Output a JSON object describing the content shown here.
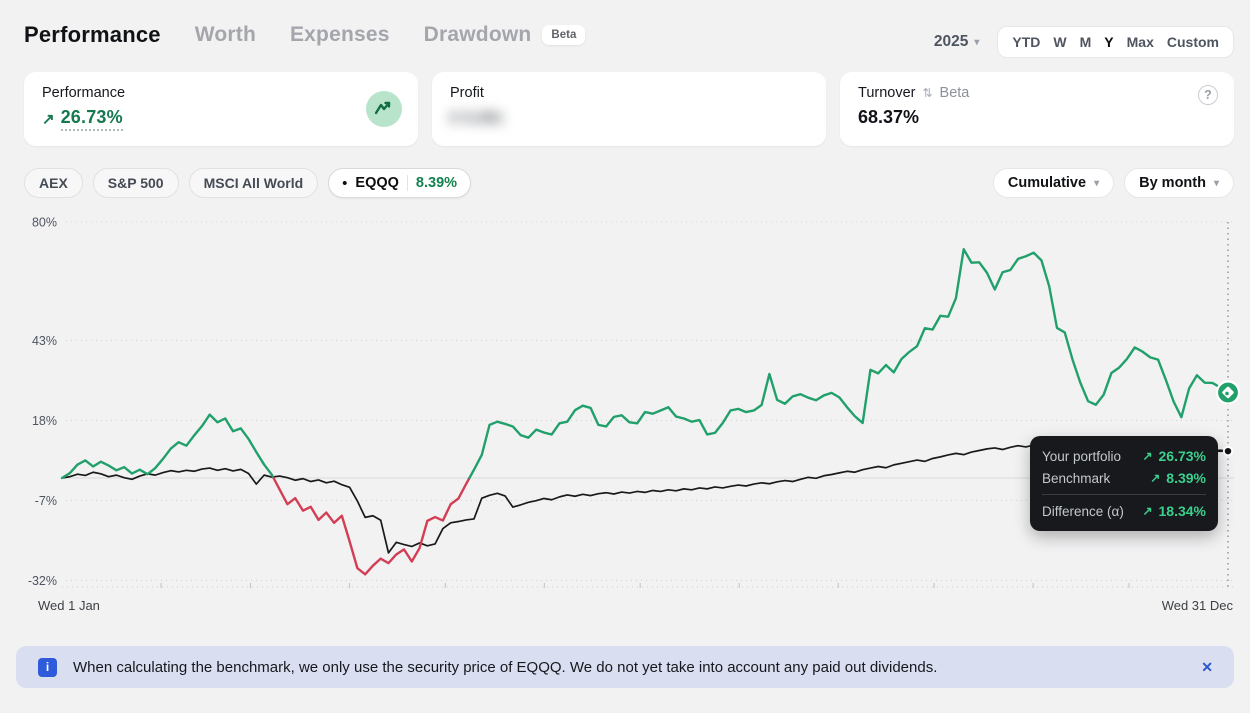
{
  "header": {
    "tabs": [
      {
        "label": "Performance",
        "active": true
      },
      {
        "label": "Worth"
      },
      {
        "label": "Expenses"
      },
      {
        "label": "Drawdown",
        "badge": "Beta"
      }
    ],
    "year_selector": "2025",
    "ranges": {
      "options": [
        "YTD",
        "W",
        "M",
        "Y",
        "Max",
        "Custom"
      ],
      "selected": "Y"
    }
  },
  "cards": {
    "performance": {
      "title": "Performance",
      "arrow": "↗",
      "value": "26.73%"
    },
    "profit": {
      "title": "Profit",
      "masked_value": "€ 5.091"
    },
    "turnover": {
      "title": "Turnover",
      "badge": "Beta",
      "value": "68.37%"
    }
  },
  "benchmark_bar": {
    "chips": [
      "AEX",
      "S&P 500",
      "MSCI All World"
    ],
    "active_chip": {
      "bullet": "•",
      "name": "EQQQ",
      "value": "8.39%"
    },
    "aggregation": "Cumulative",
    "granularity": "By month"
  },
  "chart_data": {
    "type": "line",
    "unit": "%",
    "x_axis": {
      "start_label": "Wed 1 Jan",
      "end_label": "Wed 31 Dec"
    },
    "y_ticks": [
      {
        "label": "80%",
        "value": 80
      },
      {
        "label": "43%",
        "value": 43
      },
      {
        "label": "18%",
        "value": 18
      },
      {
        "label": "-7%",
        "value": -7
      },
      {
        "label": "-32%",
        "value": -32
      }
    ],
    "ylim": [
      -36,
      84
    ],
    "grid": "dotted",
    "legend_position": "none",
    "series": [
      {
        "name": "Your portfolio",
        "color": "#22a06b",
        "negative_color": "#d23f55",
        "end_value": 26.73,
        "values": [
          0,
          1.5,
          4.2,
          5.5,
          3.6,
          5.1,
          3.9,
          2.4,
          3.4,
          1.4,
          2.6,
          1.2,
          3.1,
          6.0,
          9.2,
          11.2,
          10.1,
          13.3,
          16.2,
          19.8,
          17.4,
          18.6,
          14.6,
          15.5,
          12.2,
          8.1,
          4.2,
          1.0,
          -3.6,
          -8.2,
          -6.3,
          -10.2,
          -9.0,
          -13.1,
          -10.8,
          -14.0,
          -11.8,
          -19.8,
          -28.2,
          -30.1,
          -27.4,
          -25.2,
          -26.6,
          -23.9,
          -22.3,
          -26.1,
          -21.9,
          -13.4,
          -12.2,
          -13.3,
          -8.2,
          -6.4,
          -1.8,
          2.6,
          7.2,
          16.6,
          17.6,
          16.9,
          16.1,
          13.4,
          12.6,
          15.1,
          14.2,
          13.6,
          17.1,
          17.6,
          21.2,
          22.6,
          21.9,
          16.6,
          16.1,
          19.1,
          19.6,
          17.4,
          17.1,
          20.6,
          20.1,
          21.1,
          22.1,
          19.2,
          18.6,
          17.6,
          18.1,
          13.6,
          14.1,
          17.2,
          21.1,
          21.6,
          20.6,
          21.1,
          22.8,
          32.5,
          24.4,
          23.2,
          25.5,
          26.2,
          25.1,
          24.3,
          25.8,
          26.6,
          25.2,
          22.1,
          19.3,
          17.2,
          33.8,
          32.7,
          35.3,
          33.0,
          37.2,
          39.4,
          41.2,
          46.8,
          46.4,
          50.7,
          50.4,
          56.2,
          71.5,
          67.3,
          67.4,
          64.1,
          58.9,
          64.3,
          65.0,
          68.5,
          69.3,
          70.4,
          68.0,
          59.9,
          46.9,
          45.5,
          37.0,
          29.8,
          24.0,
          22.9,
          26.0,
          32.8,
          34.5,
          37.2,
          40.8,
          39.5,
          37.7,
          37.0,
          30.7,
          23.9,
          19.0,
          28.0,
          32.1,
          29.8,
          29.7,
          28.3,
          26.73
        ]
      },
      {
        "name": "Benchmark",
        "color": "#1a1a1a",
        "end_value": 8.39,
        "values": [
          0,
          0.4,
          1.2,
          0.8,
          1.8,
          1.3,
          0.4,
          0.9,
          0.1,
          -0.4,
          0.6,
          1.3,
          0.9,
          1.7,
          2.3,
          1.9,
          2.4,
          2.1,
          2.8,
          3.1,
          2.4,
          2.9,
          2.2,
          2.7,
          1.4,
          -1.9,
          0.9,
          0.3,
          0.6,
          0.1,
          -0.7,
          -0.2,
          -1.1,
          -0.6,
          -1.5,
          -1.0,
          -2.1,
          -2.9,
          -7.2,
          -12.3,
          -11.8,
          -13.2,
          -23.4,
          -20.1,
          -20.8,
          -21.4,
          -20.3,
          -21.2,
          -20.6,
          -15.8,
          -14.0,
          -13.6,
          -13.1,
          -12.8,
          -6.3,
          -5.4,
          -4.8,
          -5.6,
          -9.1,
          -8.4,
          -7.6,
          -7.1,
          -6.4,
          -6.8,
          -5.9,
          -5.3,
          -5.7,
          -5.1,
          -5.5,
          -4.9,
          -4.6,
          -5.0,
          -4.4,
          -4.7,
          -4.2,
          -4.5,
          -3.9,
          -4.2,
          -3.7,
          -4.0,
          -3.4,
          -3.7,
          -3.1,
          -3.4,
          -2.8,
          -3.1,
          -2.6,
          -2.2,
          -2.5,
          -1.9,
          -1.5,
          -1.8,
          -1.2,
          -0.8,
          -1.1,
          -0.4,
          0.2,
          -0.1,
          0.7,
          1.1,
          1.6,
          2.1,
          1.8,
          2.6,
          3.1,
          3.6,
          3.2,
          4.1,
          4.6,
          5.1,
          5.6,
          5.2,
          6.1,
          6.6,
          7.2,
          7.7,
          7.3,
          8.1,
          8.6,
          9.1,
          9.4,
          8.9,
          9.6,
          10.1,
          9.7,
          10.3,
          9.9,
          10.5,
          10.1,
          9.6,
          10.2,
          10.6,
          10.1,
          10.8,
          10.4,
          10.9,
          10.5,
          10.0,
          10.4,
          9.8,
          10.1,
          9.5,
          9.8,
          9.2,
          8.8,
          9.1,
          8.6,
          8.9,
          8.5,
          8.7,
          8.39
        ]
      }
    ]
  },
  "tooltip": {
    "arrow": "↗",
    "rows": [
      {
        "label": "Your portfolio",
        "value": "26.73%"
      },
      {
        "label": "Benchmark",
        "value": "8.39%"
      },
      {
        "label": "Difference (α)",
        "value": "18.34%"
      }
    ]
  },
  "banner": {
    "info_icon": "i",
    "text": "When calculating the benchmark, we only use the security price of EQQQ. We do not yet take into account any paid out dividends.",
    "close_icon": "✕"
  },
  "icons": {
    "chevron_down": "▾",
    "swap": "⇅",
    "help": "?"
  },
  "colors": {
    "accent_green": "#15794f",
    "line_green": "#22a06b",
    "line_red": "#d23f55",
    "line_black": "#1a1a1a",
    "tooltip_green": "#3bd08e",
    "banner_bg": "#d9dff1",
    "banner_blue": "#2d5bd9"
  }
}
